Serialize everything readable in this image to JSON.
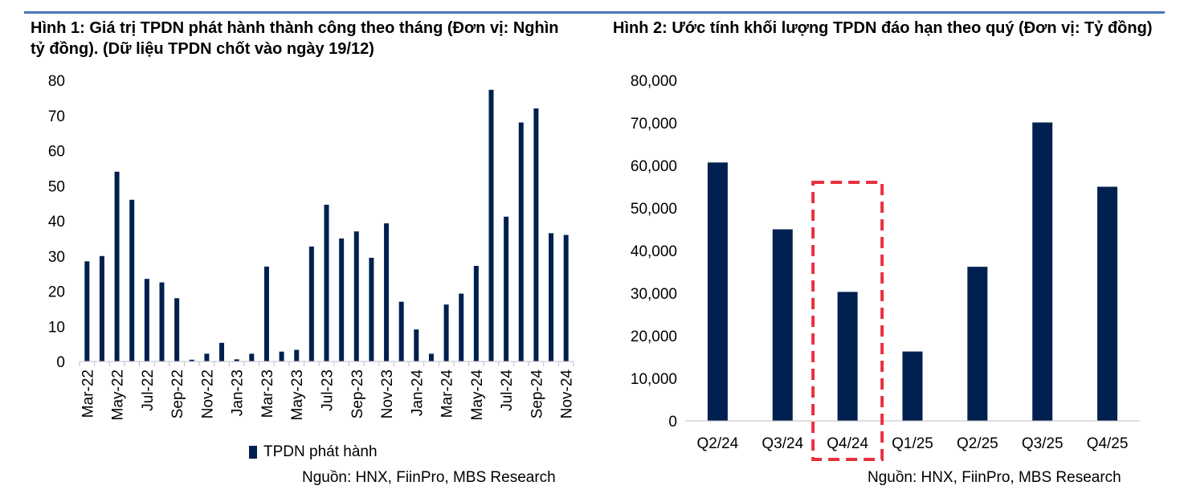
{
  "colors": {
    "bar": "#00204f",
    "axis": "#bfbfbf",
    "highlight": "#e8303f",
    "rule": "#4a78b8"
  },
  "figure1": {
    "title": "Hình 1: Giá trị TPDN phát hành thành công theo tháng (Đơn vị: Nghìn tỷ đồng). (Dữ liệu TPDN chốt vào ngày 19/12)",
    "legend": "TPDN phát hành",
    "source": "Nguồn: HNX, FiinPro, MBS Research"
  },
  "figure2": {
    "title": "Hình 2: Ước tính khối lượng TPDN đáo hạn theo quý (Đơn vị: Tỷ đồng)",
    "source": "Nguồn: HNX, FiinPro, MBS Research"
  },
  "chart_data": [
    {
      "type": "bar",
      "categories": [
        "Mar-22",
        "Apr-22",
        "May-22",
        "Jun-22",
        "Jul-22",
        "Aug-22",
        "Sep-22",
        "Oct-22",
        "Nov-22",
        "Dec-22",
        "Jan-23",
        "Feb-23",
        "Mar-23",
        "Apr-23",
        "May-23",
        "Jun-23",
        "Jul-23",
        "Aug-23",
        "Sep-23",
        "Oct-23",
        "Nov-23",
        "Dec-23",
        "Jan-24",
        "Feb-24",
        "Mar-24",
        "Apr-24",
        "May-24",
        "Jun-24",
        "Jul-24",
        "Aug-24",
        "Sep-24",
        "Oct-24",
        "Nov-24"
      ],
      "tick_labels": [
        "Mar-22",
        "May-22",
        "Jul-22",
        "Sep-22",
        "Nov-22",
        "Jan-23",
        "Mar-23",
        "May-23",
        "Jul-23",
        "Sep-23",
        "Nov-23",
        "Jan-24",
        "Mar-24",
        "May-24",
        "Jul-24",
        "Sep-24",
        "Nov-24"
      ],
      "series": [
        {
          "name": "TPDN phát hành",
          "values": [
            28.5,
            30,
            54,
            46,
            23.5,
            22.5,
            18,
            0.5,
            2.2,
            5.3,
            0.6,
            2.2,
            27,
            2.8,
            3.3,
            32.7,
            44.6,
            35,
            37,
            29.5,
            39.3,
            17,
            9.1,
            2.2,
            16.2,
            19.3,
            27.2,
            77.3,
            41.2,
            68,
            72,
            36.5,
            36
          ]
        }
      ],
      "xlabel": "",
      "ylabel": "",
      "ylim": [
        0,
        80
      ],
      "yticks": [
        "0",
        "10",
        "20",
        "30",
        "40",
        "50",
        "60",
        "70",
        "80"
      ],
      "grid": false,
      "legend_position": "bottom"
    },
    {
      "type": "bar",
      "categories": [
        "Q2/24",
        "Q3/24",
        "Q4/24",
        "Q1/25",
        "Q2/25",
        "Q3/25",
        "Q4/25"
      ],
      "values": [
        60700,
        45000,
        30300,
        16300,
        36200,
        70100,
        55000
      ],
      "highlight_category": "Q4/24",
      "xlabel": "",
      "ylabel": "",
      "ylim": [
        0,
        80000
      ],
      "yticks": [
        "0",
        "10,000",
        "20,000",
        "30,000",
        "40,000",
        "50,000",
        "60,000",
        "70,000",
        "80,000"
      ],
      "grid": false
    }
  ]
}
